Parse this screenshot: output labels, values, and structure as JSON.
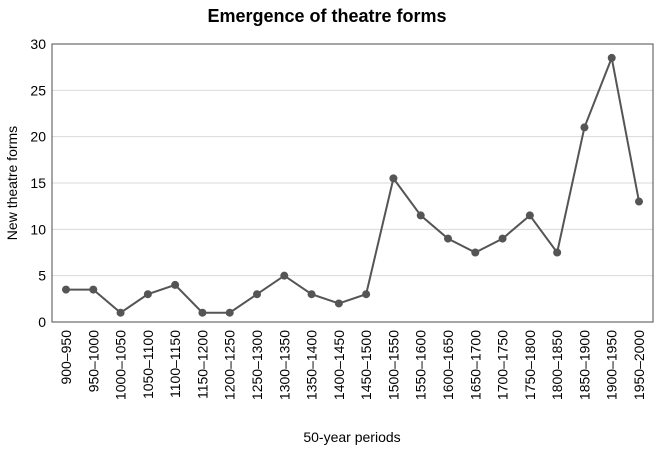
{
  "chart_data": {
    "type": "line",
    "title": "Emergence of theatre forms",
    "xlabel": "50-year periods",
    "ylabel": "New theatre forms",
    "ylim": [
      0,
      30
    ],
    "yticks": [
      0,
      5,
      10,
      15,
      20,
      25,
      30
    ],
    "grid": true,
    "categories": [
      "900–950",
      "950–1000",
      "1000–1050",
      "1050–1100",
      "1100–1150",
      "1150–1200",
      "1200–1250",
      "1250–1300",
      "1300–1350",
      "1350–1400",
      "1400–1450",
      "1450–1500",
      "1500–1550",
      "1550–1600",
      "1600–1650",
      "1650–1700",
      "1700–1750",
      "1750–1800",
      "1800–1850",
      "1850–1900",
      "1900–1950",
      "1950–2000"
    ],
    "series": [
      {
        "values": [
          3.5,
          3.5,
          1,
          3,
          4,
          1,
          1,
          3,
          5,
          3,
          2,
          3,
          15.5,
          11.5,
          9,
          7.5,
          9,
          11.5,
          7.5,
          21,
          28.5,
          13
        ],
        "color": "#555555"
      }
    ]
  }
}
